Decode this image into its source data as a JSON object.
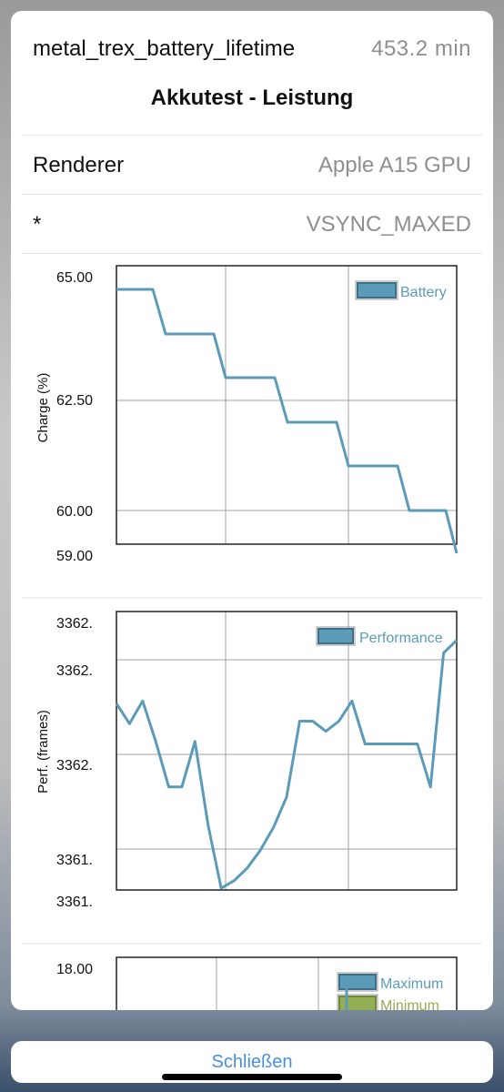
{
  "header": {
    "test_name": "metal_trex_battery_lifetime",
    "score": "453.2  min",
    "subtitle": "Akkutest - Leistung"
  },
  "info": [
    {
      "key": "Renderer",
      "value": "Apple A15 GPU"
    },
    {
      "key": "*",
      "value": "VSYNC_MAXED"
    }
  ],
  "charts": {
    "battery": {
      "ylabel": "Charge (%)",
      "legend": "Battery",
      "yticks": [
        "65.00",
        "62.50",
        "60.00",
        "59.00"
      ]
    },
    "performance": {
      "ylabel": "Perf. (frames)",
      "legend": "Performance",
      "yticks": [
        "3362.",
        "3362.",
        "3362.",
        "3361.",
        "3361."
      ]
    },
    "temperature": {
      "yticks": [
        "18.00"
      ],
      "legend_max": "Maximum",
      "legend_min": "Minimum"
    }
  },
  "chart_data": [
    {
      "type": "line",
      "ylabel": "Charge (%)",
      "ylim": [
        59.0,
        65.0
      ],
      "grid": true,
      "legend_position": "top-right",
      "series": [
        {
          "name": "Battery",
          "color": "#5b9bb8",
          "x": [
            0,
            0.1,
            0.14,
            0.29,
            0.32,
            0.47,
            0.5,
            0.65,
            0.68,
            0.83,
            0.86,
            0.96,
            1.0
          ],
          "values": [
            64.7,
            64.7,
            63.8,
            63.8,
            62.8,
            62.8,
            61.9,
            61.9,
            60.95,
            60.95,
            60.0,
            60.0,
            59.0
          ]
        }
      ]
    },
    {
      "type": "line",
      "ylabel": "Perf. (frames)",
      "grid": true,
      "legend_position": "top-right",
      "series": [
        {
          "name": "Performance",
          "color": "#5b9bb8",
          "values": [
            0.73,
            0.65,
            0.74,
            0.58,
            0.4,
            0.4,
            0.58,
            0.25,
            0.0,
            0.03,
            0.08,
            0.15,
            0.24,
            0.36,
            0.66,
            0.66,
            0.62,
            0.66,
            0.74,
            0.57,
            0.57,
            0.57,
            0.57,
            0.57,
            0.4,
            0.93,
            0.98
          ]
        }
      ]
    }
  ],
  "footer": {
    "close_label": "Schließen"
  },
  "colors": {
    "accent": "#4a90d9",
    "series": "#5b9bb8",
    "minimum": "#93ad55"
  }
}
